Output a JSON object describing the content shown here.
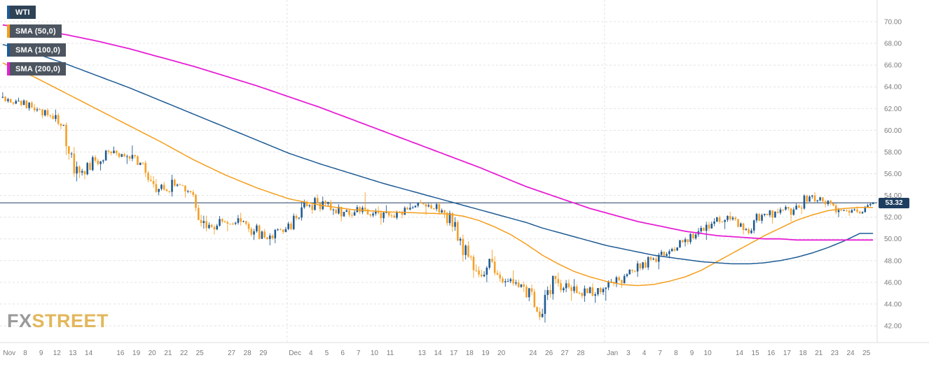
{
  "legend": {
    "items": [
      {
        "id": "wti",
        "label": "WTI",
        "stripe": "#1f5b94",
        "bg": "#2f4356"
      },
      {
        "id": "sma-50",
        "label": "SMA (50,0)",
        "stripe": "#f59e1b",
        "bg": "#4c5560"
      },
      {
        "id": "sma-100",
        "label": "SMA (100,0)",
        "stripe": "#1f5b94",
        "bg": "#4c5560"
      },
      {
        "id": "sma-200",
        "label": "SMA (200,0)",
        "stripe": "#e61fd5",
        "bg": "#4c5560"
      }
    ]
  },
  "watermark": {
    "fx": "FX",
    "street": "STREET",
    "fx_color": "#9a9a9a",
    "street_color": "#e2b75c"
  },
  "current_price": {
    "value": "53.32",
    "badge_bg": "#1e3e60"
  },
  "price_axis": {
    "ticks": [
      "70.00",
      "68.00",
      "66.00",
      "64.00",
      "62.00",
      "60.00",
      "58.00",
      "56.00",
      "54.00",
      "52.00",
      "50.00",
      "48.00",
      "46.00",
      "44.00",
      "42.00"
    ]
  },
  "date_axis": {
    "labels": [
      {
        "t": "Nov",
        "d": 0
      },
      {
        "t": "8",
        "d": 1
      },
      {
        "t": "9",
        "d": 2
      },
      {
        "t": "12",
        "d": 3
      },
      {
        "t": "13",
        "d": 4
      },
      {
        "t": "14",
        "d": 5
      },
      {
        "t": "16",
        "d": 7
      },
      {
        "t": "19",
        "d": 8
      },
      {
        "t": "20",
        "d": 9
      },
      {
        "t": "21",
        "d": 10
      },
      {
        "t": "22",
        "d": 11
      },
      {
        "t": "25",
        "d": 12
      },
      {
        "t": "27",
        "d": 14
      },
      {
        "t": "28",
        "d": 15
      },
      {
        "t": "29",
        "d": 16
      },
      {
        "t": "Dec",
        "d": 18
      },
      {
        "t": "4",
        "d": 19
      },
      {
        "t": "5",
        "d": 20
      },
      {
        "t": "6",
        "d": 21
      },
      {
        "t": "7",
        "d": 22
      },
      {
        "t": "10",
        "d": 23
      },
      {
        "t": "11",
        "d": 24
      },
      {
        "t": "13",
        "d": 26
      },
      {
        "t": "14",
        "d": 27
      },
      {
        "t": "17",
        "d": 28
      },
      {
        "t": "18",
        "d": 29
      },
      {
        "t": "19",
        "d": 30
      },
      {
        "t": "20",
        "d": 31
      },
      {
        "t": "24",
        "d": 33
      },
      {
        "t": "26",
        "d": 34
      },
      {
        "t": "27",
        "d": 35
      },
      {
        "t": "28",
        "d": 36
      },
      {
        "t": "Jan",
        "d": 38
      },
      {
        "t": "3",
        "d": 39
      },
      {
        "t": "4",
        "d": 40
      },
      {
        "t": "7",
        "d": 41
      },
      {
        "t": "8",
        "d": 42
      },
      {
        "t": "9",
        "d": 43
      },
      {
        "t": "10",
        "d": 44
      },
      {
        "t": "14",
        "d": 46
      },
      {
        "t": "15",
        "d": 47
      },
      {
        "t": "16",
        "d": 48
      },
      {
        "t": "17",
        "d": 49
      },
      {
        "t": "18",
        "d": 50
      },
      {
        "t": "21",
        "d": 51
      },
      {
        "t": "23",
        "d": 52
      },
      {
        "t": "24",
        "d": 53
      },
      {
        "t": "25",
        "d": 54
      }
    ]
  },
  "chart_data": {
    "type": "candlestick",
    "instrument": "WTI",
    "price_line": 53.32,
    "price_min": 42,
    "price_max": 70,
    "candles_per_day": 6,
    "month_start_days": [
      18,
      38
    ],
    "colors": {
      "up": "#1f5b94",
      "down": "#f5a028",
      "grid": "#e3e3e3",
      "axis_text": "#7b7b7b",
      "price_line": "#1e3e60"
    },
    "days": [
      {
        "d": "Nov 7",
        "o": 63.0,
        "h": 63.5,
        "l": 62.3,
        "c": 62.7
      },
      {
        "d": "Nov 8",
        "o": 62.7,
        "h": 63.0,
        "l": 61.8,
        "c": 62.1
      },
      {
        "d": "Nov 9",
        "o": 62.1,
        "h": 62.4,
        "l": 61.1,
        "c": 61.4
      },
      {
        "d": "Nov 12",
        "o": 61.4,
        "h": 61.9,
        "l": 60.1,
        "c": 60.5
      },
      {
        "d": "Nov 13",
        "o": 60.5,
        "h": 60.7,
        "l": 55.3,
        "c": 56.1
      },
      {
        "d": "Nov 14",
        "o": 56.1,
        "h": 57.7,
        "l": 55.5,
        "c": 57.2
      },
      {
        "d": "Nov 15",
        "o": 57.2,
        "h": 58.2,
        "l": 56.3,
        "c": 57.9
      },
      {
        "d": "Nov 16",
        "o": 57.9,
        "h": 58.5,
        "l": 56.9,
        "c": 57.6
      },
      {
        "d": "Nov 19",
        "o": 57.6,
        "h": 58.6,
        "l": 56.8,
        "c": 57.0
      },
      {
        "d": "Nov 20",
        "o": 57.0,
        "h": 57.2,
        "l": 54.0,
        "c": 54.6
      },
      {
        "d": "Nov 21",
        "o": 54.6,
        "h": 55.9,
        "l": 53.9,
        "c": 54.9
      },
      {
        "d": "Nov 22",
        "o": 54.9,
        "h": 55.1,
        "l": 53.8,
        "c": 54.3
      },
      {
        "d": "Nov 25",
        "o": 54.3,
        "h": 54.5,
        "l": 50.7,
        "c": 51.0
      },
      {
        "d": "Nov 26",
        "o": 51.0,
        "h": 52.1,
        "l": 50.4,
        "c": 51.6
      },
      {
        "d": "Nov 27",
        "o": 51.6,
        "h": 52.2,
        "l": 50.7,
        "c": 51.9
      },
      {
        "d": "Nov 28",
        "o": 51.9,
        "h": 52.4,
        "l": 49.9,
        "c": 50.7
      },
      {
        "d": "Nov 29",
        "o": 50.7,
        "h": 51.4,
        "l": 49.4,
        "c": 50.3
      },
      {
        "d": "Nov 30",
        "o": 50.3,
        "h": 51.1,
        "l": 49.6,
        "c": 50.9
      },
      {
        "d": "Dec 3",
        "o": 50.9,
        "h": 53.4,
        "l": 50.8,
        "c": 52.9
      },
      {
        "d": "Dec 4",
        "o": 52.9,
        "h": 54.1,
        "l": 52.3,
        "c": 53.3
      },
      {
        "d": "Dec 5",
        "o": 53.3,
        "h": 53.9,
        "l": 52.2,
        "c": 52.7
      },
      {
        "d": "Dec 6",
        "o": 52.7,
        "h": 53.2,
        "l": 51.6,
        "c": 52.2
      },
      {
        "d": "Dec 7",
        "o": 52.2,
        "h": 54.3,
        "l": 51.9,
        "c": 52.7
      },
      {
        "d": "Dec 10",
        "o": 52.7,
        "h": 53.0,
        "l": 51.3,
        "c": 51.9
      },
      {
        "d": "Dec 11",
        "o": 51.9,
        "h": 53.1,
        "l": 51.5,
        "c": 52.5
      },
      {
        "d": "Dec 12",
        "o": 52.5,
        "h": 53.3,
        "l": 51.9,
        "c": 52.9
      },
      {
        "d": "Dec 13",
        "o": 52.9,
        "h": 53.6,
        "l": 52.2,
        "c": 53.1
      },
      {
        "d": "Dec 14",
        "o": 53.1,
        "h": 53.4,
        "l": 51.9,
        "c": 52.4
      },
      {
        "d": "Dec 17",
        "o": 52.4,
        "h": 52.6,
        "l": 49.4,
        "c": 50.0
      },
      {
        "d": "Dec 18",
        "o": 50.0,
        "h": 50.4,
        "l": 46.4,
        "c": 47.1
      },
      {
        "d": "Dec 19",
        "o": 47.1,
        "h": 49.0,
        "l": 46.0,
        "c": 47.9
      },
      {
        "d": "Dec 20",
        "o": 47.9,
        "h": 48.4,
        "l": 45.6,
        "c": 46.1
      },
      {
        "d": "Dec 21",
        "o": 46.1,
        "h": 47.1,
        "l": 45.1,
        "c": 45.6
      },
      {
        "d": "Dec 24",
        "o": 45.6,
        "h": 45.8,
        "l": 42.5,
        "c": 42.8
      },
      {
        "d": "Dec 26",
        "o": 42.8,
        "h": 46.6,
        "l": 42.3,
        "c": 46.3
      },
      {
        "d": "Dec 27",
        "o": 46.3,
        "h": 46.9,
        "l": 44.3,
        "c": 45.2
      },
      {
        "d": "Dec 28",
        "o": 45.2,
        "h": 46.3,
        "l": 44.2,
        "c": 45.0
      },
      {
        "d": "Dec 31",
        "o": 45.0,
        "h": 45.9,
        "l": 44.1,
        "c": 45.4
      },
      {
        "d": "Jan 2",
        "o": 45.4,
        "h": 46.6,
        "l": 44.3,
        "c": 46.2
      },
      {
        "d": "Jan 3",
        "o": 46.2,
        "h": 47.2,
        "l": 45.5,
        "c": 47.0
      },
      {
        "d": "Jan 4",
        "o": 47.0,
        "h": 48.4,
        "l": 46.5,
        "c": 48.1
      },
      {
        "d": "Jan 7",
        "o": 48.1,
        "h": 49.0,
        "l": 47.2,
        "c": 48.6
      },
      {
        "d": "Jan 8",
        "o": 48.6,
        "h": 49.9,
        "l": 48.2,
        "c": 49.7
      },
      {
        "d": "Jan 9",
        "o": 49.7,
        "h": 51.0,
        "l": 49.3,
        "c": 50.7
      },
      {
        "d": "Jan 10",
        "o": 50.7,
        "h": 51.9,
        "l": 49.9,
        "c": 51.6
      },
      {
        "d": "Jan 11",
        "o": 51.6,
        "h": 52.5,
        "l": 50.9,
        "c": 51.8
      },
      {
        "d": "Jan 14",
        "o": 51.8,
        "h": 52.1,
        "l": 50.4,
        "c": 50.9
      },
      {
        "d": "Jan 15",
        "o": 50.9,
        "h": 52.4,
        "l": 50.4,
        "c": 52.2
      },
      {
        "d": "Jan 16",
        "o": 52.2,
        "h": 52.8,
        "l": 51.4,
        "c": 52.4
      },
      {
        "d": "Jan 17",
        "o": 52.4,
        "h": 53.1,
        "l": 51.6,
        "c": 52.7
      },
      {
        "d": "Jan 18",
        "o": 52.7,
        "h": 54.1,
        "l": 52.3,
        "c": 53.9
      },
      {
        "d": "Jan 21",
        "o": 53.9,
        "h": 54.3,
        "l": 52.9,
        "c": 53.2
      },
      {
        "d": "Jan 23",
        "o": 53.2,
        "h": 53.6,
        "l": 52.0,
        "c": 52.6
      },
      {
        "d": "Jan 24",
        "o": 52.6,
        "h": 53.0,
        "l": 52.1,
        "c": 52.5
      },
      {
        "d": "Jan 25",
        "o": 52.5,
        "h": 53.4,
        "l": 52.3,
        "c": 53.32
      }
    ],
    "sma": [
      {
        "period": "50",
        "name": "SMA (50,0)",
        "color": "#f59e1b",
        "width": 1.5,
        "points": [
          [
            0,
            66.2
          ],
          [
            2,
            64.9
          ],
          [
            4,
            63.4
          ],
          [
            6,
            61.9
          ],
          [
            8,
            60.4
          ],
          [
            10,
            58.9
          ],
          [
            12,
            57.3
          ],
          [
            14,
            55.9
          ],
          [
            16,
            54.7
          ],
          [
            18,
            53.7
          ],
          [
            20,
            53.1
          ],
          [
            22,
            52.7
          ],
          [
            24,
            52.5
          ],
          [
            26,
            52.4
          ],
          [
            28,
            52.3
          ],
          [
            29,
            52.1
          ],
          [
            30,
            51.7
          ],
          [
            31,
            51.1
          ],
          [
            32,
            50.4
          ],
          [
            33,
            49.5
          ],
          [
            34,
            48.5
          ],
          [
            35,
            47.7
          ],
          [
            36,
            47.0
          ],
          [
            37,
            46.5
          ],
          [
            38,
            46.1
          ],
          [
            39,
            45.8
          ],
          [
            40,
            45.7
          ],
          [
            41,
            45.8
          ],
          [
            42,
            46.1
          ],
          [
            43,
            46.5
          ],
          [
            44,
            47.1
          ],
          [
            45,
            47.9
          ],
          [
            46,
            48.7
          ],
          [
            47,
            49.5
          ],
          [
            48,
            50.3
          ],
          [
            49,
            51.0
          ],
          [
            50,
            51.7
          ],
          [
            51,
            52.2
          ],
          [
            52,
            52.6
          ],
          [
            53,
            52.8
          ],
          [
            54,
            52.9
          ]
        ]
      },
      {
        "period": "100",
        "name": "SMA (100,0)",
        "color": "#1f5b94",
        "width": 1.5,
        "points": [
          [
            0,
            67.9
          ],
          [
            2,
            67.1
          ],
          [
            4,
            66.1
          ],
          [
            6,
            65.0
          ],
          [
            8,
            63.9
          ],
          [
            10,
            62.7
          ],
          [
            12,
            61.5
          ],
          [
            14,
            60.3
          ],
          [
            16,
            59.1
          ],
          [
            18,
            57.9
          ],
          [
            20,
            56.9
          ],
          [
            22,
            56.0
          ],
          [
            24,
            55.1
          ],
          [
            26,
            54.3
          ],
          [
            27,
            53.9
          ],
          [
            28,
            53.5
          ],
          [
            29,
            53.1
          ],
          [
            30,
            52.7
          ],
          [
            31,
            52.3
          ],
          [
            32,
            51.9
          ],
          [
            33,
            51.5
          ],
          [
            34,
            51.0
          ],
          [
            35,
            50.6
          ],
          [
            36,
            50.2
          ],
          [
            37,
            49.8
          ],
          [
            38,
            49.4
          ],
          [
            39,
            49.1
          ],
          [
            40,
            48.8
          ],
          [
            41,
            48.5
          ],
          [
            42,
            48.3
          ],
          [
            43,
            48.1
          ],
          [
            44,
            47.9
          ],
          [
            45,
            47.8
          ],
          [
            46,
            47.7
          ],
          [
            47,
            47.7
          ],
          [
            48,
            47.8
          ],
          [
            49,
            48.0
          ],
          [
            50,
            48.3
          ],
          [
            51,
            48.7
          ],
          [
            52,
            49.2
          ],
          [
            53,
            49.8
          ],
          [
            54,
            50.5
          ]
        ]
      },
      {
        "period": "200",
        "name": "SMA (200,0)",
        "color": "#e61fd5",
        "width": 1.8,
        "points": [
          [
            0,
            69.7
          ],
          [
            2,
            69.3
          ],
          [
            4,
            68.8
          ],
          [
            6,
            68.2
          ],
          [
            8,
            67.5
          ],
          [
            10,
            66.7
          ],
          [
            12,
            65.9
          ],
          [
            14,
            65.0
          ],
          [
            16,
            64.1
          ],
          [
            18,
            63.1
          ],
          [
            20,
            62.1
          ],
          [
            22,
            61.0
          ],
          [
            24,
            59.9
          ],
          [
            26,
            58.8
          ],
          [
            28,
            57.7
          ],
          [
            30,
            56.6
          ],
          [
            31,
            56.0
          ],
          [
            32,
            55.4
          ],
          [
            33,
            54.8
          ],
          [
            34,
            54.3
          ],
          [
            35,
            53.8
          ],
          [
            36,
            53.3
          ],
          [
            37,
            52.8
          ],
          [
            38,
            52.4
          ],
          [
            39,
            52.0
          ],
          [
            40,
            51.6
          ],
          [
            41,
            51.3
          ],
          [
            42,
            51.0
          ],
          [
            43,
            50.7
          ],
          [
            44,
            50.5
          ],
          [
            45,
            50.3
          ],
          [
            46,
            50.2
          ],
          [
            47,
            50.1
          ],
          [
            48,
            50.0
          ],
          [
            49,
            50.0
          ],
          [
            50,
            49.9
          ],
          [
            51,
            49.9
          ],
          [
            52,
            49.9
          ],
          [
            53,
            49.9
          ],
          [
            54,
            49.9
          ]
        ]
      }
    ]
  }
}
